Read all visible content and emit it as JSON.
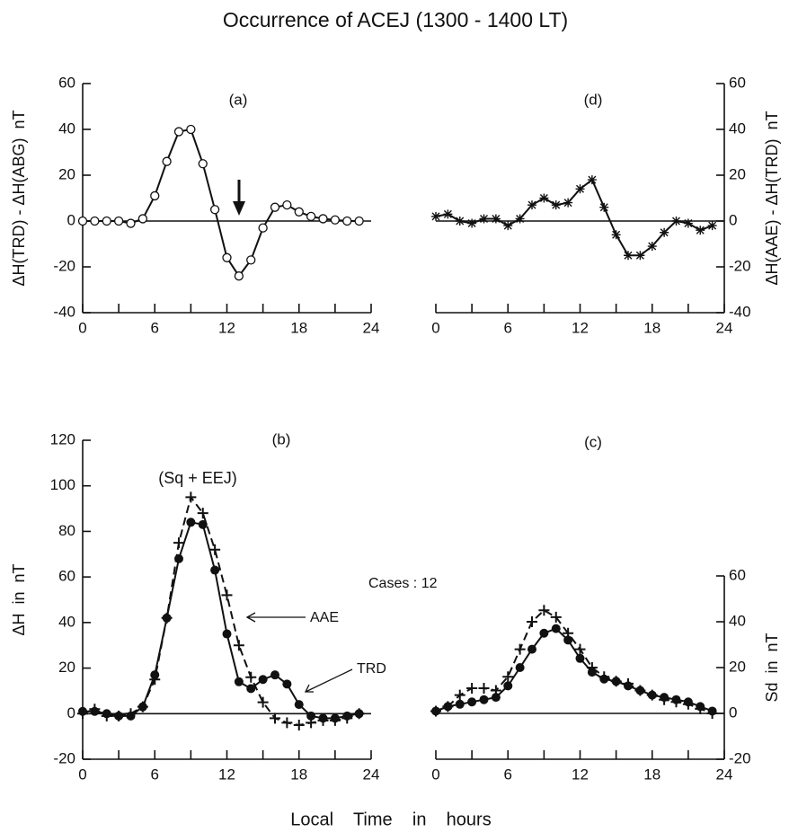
{
  "figure": {
    "title": "Occurrence of ACEJ (1300 - 1400 LT)",
    "xlabel": "Local    Time    in    hours",
    "annotation": "Cases : 12"
  },
  "chart_data": [
    {
      "type": "line",
      "panel_label": "(a)",
      "ylabel": "ΔH(TRD) - ΔH(ABG)  nT",
      "yaxis_side": "left",
      "x": [
        0,
        1,
        2,
        3,
        4,
        5,
        6,
        7,
        8,
        9,
        10,
        11,
        12,
        13,
        14,
        15,
        16,
        17,
        18,
        19,
        20,
        21,
        22,
        23
      ],
      "series": [
        {
          "color": "#111",
          "marker": "circle",
          "dashed": false,
          "values": [
            0,
            0,
            0,
            0,
            -1,
            1,
            11,
            26,
            39,
            40,
            25,
            5,
            -16,
            -24,
            -17,
            -3,
            6,
            7,
            4,
            2,
            1,
            0.5,
            0,
            0
          ]
        }
      ],
      "xlim": [
        0,
        24
      ],
      "xticks": [
        0,
        6,
        12,
        18,
        24
      ],
      "xminorticks": [
        3,
        9,
        15,
        21
      ],
      "ylim": [
        -40,
        60
      ],
      "yticks": [
        -40,
        -20,
        0,
        20,
        40,
        60
      ]
    },
    {
      "type": "line",
      "panel_label": "(d)",
      "ylabel": "ΔH(AAE) - ΔH(TRD)  nT",
      "yaxis_side": "right",
      "x": [
        0,
        1,
        2,
        3,
        4,
        5,
        6,
        7,
        8,
        9,
        10,
        11,
        12,
        13,
        14,
        15,
        16,
        17,
        18,
        19,
        20,
        21,
        22,
        23
      ],
      "series": [
        {
          "color": "#111",
          "marker": "asterisk",
          "dashed": false,
          "values": [
            2,
            3,
            0,
            -1,
            1,
            1,
            -2,
            1,
            7,
            10,
            7,
            8,
            14,
            18,
            6,
            -6,
            -15,
            -15,
            -11,
            -5,
            0,
            -1,
            -4,
            -2
          ]
        }
      ],
      "xlim": [
        0,
        24
      ],
      "xticks": [
        0,
        6,
        12,
        18,
        24
      ],
      "xminorticks": [
        3,
        9,
        15,
        21
      ],
      "ylim": [
        -40,
        60
      ],
      "yticks": [
        -40,
        -20,
        0,
        20,
        40,
        60
      ]
    },
    {
      "type": "line",
      "panel_label": "(b)",
      "ylabel": "ΔH  in  nT",
      "yaxis_side": "left",
      "annotations": [
        "(Sq + EEJ)"
      ],
      "x": [
        0,
        1,
        2,
        3,
        4,
        5,
        6,
        7,
        8,
        9,
        10,
        11,
        12,
        13,
        14,
        15,
        16,
        17,
        18,
        19,
        20,
        21,
        22,
        23
      ],
      "series": [
        {
          "name": "AAE",
          "color": "#111",
          "marker": "plus",
          "dashed": true,
          "values": [
            0,
            2,
            -1,
            -1,
            0,
            3,
            15,
            42,
            75,
            95,
            88,
            72,
            52,
            30,
            16,
            5,
            -2,
            -4,
            -5,
            -4,
            -3,
            -3,
            -2,
            0
          ]
        },
        {
          "name": "TRD",
          "color": "#111",
          "marker": "dot",
          "dashed": false,
          "values": [
            1,
            1,
            0,
            -1,
            -1,
            3,
            17,
            42,
            68,
            84,
            83,
            63,
            35,
            14,
            11,
            15,
            17,
            13,
            4,
            -1,
            -2,
            -2,
            -1,
            0
          ]
        }
      ],
      "xlim": [
        0,
        24
      ],
      "xticks": [
        0,
        6,
        12,
        18,
        24
      ],
      "xminorticks": [
        3,
        9,
        15,
        21
      ],
      "ylim": [
        -20,
        120
      ],
      "yticks": [
        -20,
        0,
        20,
        40,
        60,
        80,
        100,
        120
      ]
    },
    {
      "type": "line",
      "panel_label": "(c)",
      "ylabel": "Sd  in  nT",
      "yaxis_side": "right",
      "x": [
        0,
        1,
        2,
        3,
        4,
        5,
        6,
        7,
        8,
        9,
        10,
        11,
        12,
        13,
        14,
        15,
        16,
        17,
        18,
        19,
        20,
        21,
        22,
        23
      ],
      "series": [
        {
          "color": "#111",
          "marker": "plus",
          "dashed": true,
          "values": [
            1,
            3,
            8,
            11,
            11,
            10,
            16,
            28,
            40,
            45,
            42,
            35,
            28,
            20,
            16,
            14,
            13,
            10,
            8,
            6,
            5,
            4,
            2,
            0
          ]
        },
        {
          "color": "#111",
          "marker": "dot",
          "dashed": false,
          "values": [
            1,
            3,
            4,
            5,
            6,
            7,
            12,
            20,
            28,
            35,
            37,
            32,
            24,
            18,
            15,
            14,
            12,
            10,
            8,
            7,
            6,
            5,
            3,
            1
          ]
        }
      ],
      "xlim": [
        0,
        24
      ],
      "xticks": [
        0,
        6,
        12,
        18,
        24
      ],
      "xminorticks": [
        3,
        9,
        15,
        21
      ],
      "ylim": [
        -20,
        60
      ],
      "yticks": [
        -20,
        0,
        20,
        40,
        60
      ]
    }
  ]
}
